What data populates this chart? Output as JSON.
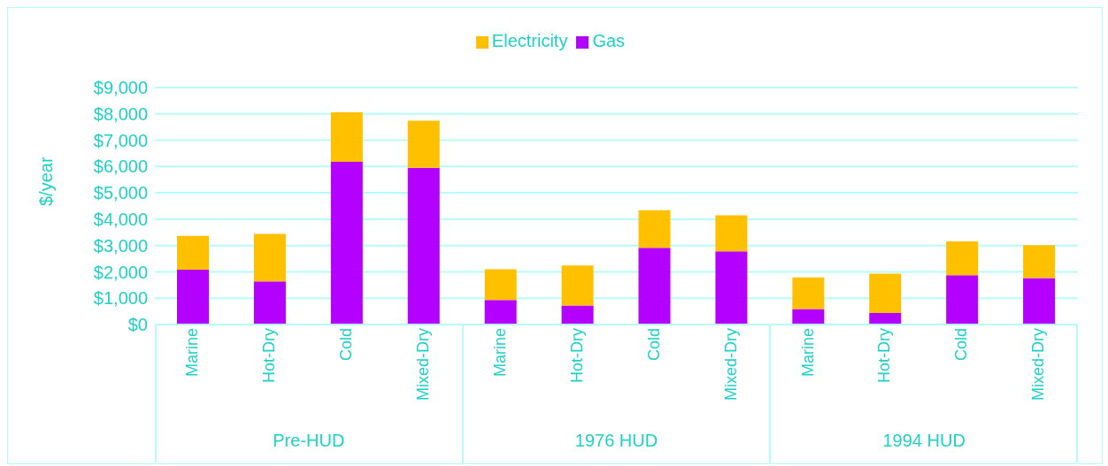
{
  "chart_data": {
    "type": "bar",
    "stacked": true,
    "ylabel": "$/year",
    "categories": [
      "Marine",
      "Hot-Dry",
      "Cold",
      "Mixed-Dry",
      "Marine",
      "Hot-Dry",
      "Cold",
      "Mixed-Dry",
      "Marine",
      "Hot-Dry",
      "Cold",
      "Mixed-Dry"
    ],
    "series": [
      {
        "name": "Gas",
        "color": "#b300ff",
        "values": [
          2080,
          1640,
          6180,
          5950,
          930,
          720,
          2910,
          2780,
          590,
          440,
          1870,
          1760
        ]
      },
      {
        "name": "Electricity",
        "color": "#ffc000",
        "values": [
          1290,
          1800,
          1880,
          1790,
          1170,
          1520,
          1430,
          1370,
          1200,
          1490,
          1290,
          1250
        ]
      }
    ],
    "ylim": [
      0,
      9000
    ],
    "yticks": [
      {
        "value": 0,
        "label": "$0"
      },
      {
        "value": 1000,
        "label": "$1,000"
      },
      {
        "value": 2000,
        "label": "$2,000"
      },
      {
        "value": 3000,
        "label": "$3,000"
      },
      {
        "value": 4000,
        "label": "$4,000"
      },
      {
        "value": 5000,
        "label": "$5,000"
      },
      {
        "value": 6000,
        "label": "$6,000"
      },
      {
        "value": 7000,
        "label": "$7,000"
      },
      {
        "value": 8000,
        "label": "$8,000"
      },
      {
        "value": 9000,
        "label": "$9,000"
      }
    ],
    "annotations": [
      "Pre-HUD",
      "1976 HUD",
      "1994 HUD"
    ],
    "grid": "y",
    "legend": "top"
  }
}
